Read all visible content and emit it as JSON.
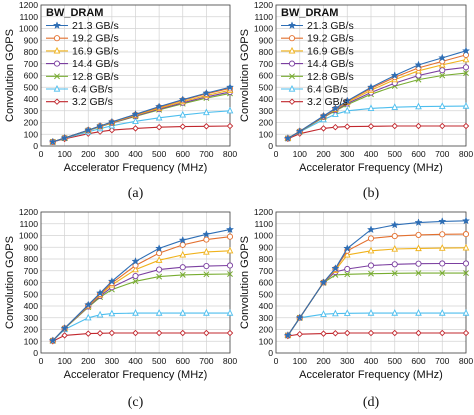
{
  "figure": {
    "legend_title": "BW_DRAM",
    "xlabel": "Accelerator Frequency (MHz)",
    "ylabel": "Convolution GOPS"
  },
  "series_styles": [
    {
      "name": "21.3 GB/s",
      "color": "#2e6eb5",
      "marker": "star"
    },
    {
      "name": "19.2 GB/s",
      "color": "#e3702f",
      "marker": "circle"
    },
    {
      "name": "16.9 GB/s",
      "color": "#f0b21b",
      "marker": "triangle"
    },
    {
      "name": "14.4 GB/s",
      "color": "#7b3fa0",
      "marker": "circle"
    },
    {
      "name": "12.8 GB/s",
      "color": "#77ac30",
      "marker": "cross"
    },
    {
      "name": "6.4 GB/s",
      "color": "#4dbeee",
      "marker": "triangle"
    },
    {
      "name": "3.2 GB/s",
      "color": "#c1272d",
      "marker": "diamond"
    }
  ],
  "chart_data": [
    {
      "type": "line",
      "caption": "(a)",
      "legend": "top-left",
      "grid": true,
      "x": [
        50,
        100,
        200,
        250,
        300,
        400,
        500,
        600,
        700,
        800
      ],
      "xlim": [
        0,
        800
      ],
      "ylim": [
        0,
        1200
      ],
      "xticks": [
        0,
        100,
        200,
        300,
        400,
        500,
        600,
        700,
        800
      ],
      "yticks": [
        0,
        100,
        200,
        300,
        400,
        500,
        600,
        700,
        800,
        900,
        1000,
        1100,
        1200
      ],
      "xlabel": "Accelerator Frequency (MHz)",
      "ylabel": "Convolution GOPS",
      "series": [
        {
          "name": "21.3 GB/s",
          "values": [
            35,
            68,
            135,
            170,
            205,
            270,
            335,
            395,
            450,
            500
          ]
        },
        {
          "name": "19.2 GB/s",
          "values": [
            35,
            68,
            135,
            170,
            203,
            267,
            330,
            390,
            443,
            490
          ]
        },
        {
          "name": "16.9 GB/s",
          "values": [
            35,
            68,
            134,
            168,
            200,
            262,
            322,
            378,
            430,
            475
          ]
        },
        {
          "name": "14.4 GB/s",
          "values": [
            35,
            68,
            133,
            166,
            197,
            256,
            314,
            368,
            418,
            460
          ]
        },
        {
          "name": "12.8 GB/s",
          "values": [
            35,
            67,
            132,
            164,
            195,
            252,
            308,
            360,
            408,
            448
          ]
        },
        {
          "name": "6.4 GB/s",
          "values": [
            35,
            65,
            120,
            148,
            172,
            210,
            240,
            265,
            285,
            300
          ]
        },
        {
          "name": "3.2 GB/s",
          "values": [
            35,
            60,
            105,
            122,
            135,
            150,
            160,
            165,
            168,
            170
          ]
        }
      ]
    },
    {
      "type": "line",
      "caption": "(b)",
      "legend": "top-left",
      "grid": true,
      "x": [
        50,
        100,
        200,
        250,
        300,
        400,
        500,
        600,
        700,
        800
      ],
      "xlim": [
        0,
        800
      ],
      "ylim": [
        0,
        1200
      ],
      "xticks": [
        0,
        100,
        200,
        300,
        400,
        500,
        600,
        700,
        800
      ],
      "yticks": [
        0,
        100,
        200,
        300,
        400,
        500,
        600,
        700,
        800,
        900,
        1000,
        1100,
        1200
      ],
      "xlabel": "Accelerator Frequency (MHz)",
      "ylabel": "Convolution GOPS",
      "series": [
        {
          "name": "21.3 GB/s",
          "values": [
            65,
            125,
            255,
            320,
            385,
            500,
            600,
            690,
            750,
            810
          ]
        },
        {
          "name": "19.2 GB/s",
          "values": [
            65,
            125,
            253,
            317,
            380,
            490,
            585,
            665,
            720,
            775
          ]
        },
        {
          "name": "16.9 GB/s",
          "values": [
            65,
            124,
            250,
            312,
            372,
            475,
            565,
            640,
            690,
            735
          ]
        },
        {
          "name": "14.4 GB/s",
          "values": [
            65,
            123,
            247,
            306,
            362,
            455,
            535,
            600,
            645,
            670
          ]
        },
        {
          "name": "12.8 GB/s",
          "values": [
            65,
            122,
            243,
            300,
            352,
            440,
            510,
            565,
            600,
            620
          ]
        },
        {
          "name": "6.4 GB/s",
          "values": [
            65,
            120,
            225,
            270,
            300,
            320,
            330,
            335,
            338,
            340
          ]
        },
        {
          "name": "3.2 GB/s",
          "values": [
            62,
            105,
            150,
            160,
            165,
            168,
            170,
            170,
            170,
            170
          ]
        }
      ]
    },
    {
      "type": "line",
      "caption": "(c)",
      "legend": "none",
      "grid": true,
      "x": [
        50,
        100,
        200,
        250,
        300,
        400,
        500,
        600,
        700,
        800
      ],
      "xlim": [
        0,
        800
      ],
      "ylim": [
        0,
        1200
      ],
      "xticks": [
        0,
        100,
        200,
        300,
        400,
        500,
        600,
        700,
        800
      ],
      "yticks": [
        0,
        100,
        200,
        300,
        400,
        500,
        600,
        700,
        800,
        900,
        1000,
        1100,
        1200
      ],
      "xlabel": "Accelerator Frequency (MHz)",
      "ylabel": "Convolution GOPS",
      "series": [
        {
          "name": "21.3 GB/s",
          "values": [
            105,
            210,
            410,
            510,
            610,
            780,
            890,
            960,
            1010,
            1050
          ]
        },
        {
          "name": "19.2 GB/s",
          "values": [
            105,
            210,
            405,
            502,
            595,
            745,
            850,
            920,
            965,
            990
          ]
        },
        {
          "name": "16.9 GB/s",
          "values": [
            105,
            210,
            400,
            495,
            580,
            710,
            790,
            835,
            860,
            870
          ]
        },
        {
          "name": "14.4 GB/s",
          "values": [
            105,
            210,
            395,
            485,
            560,
            655,
            710,
            730,
            740,
            745
          ]
        },
        {
          "name": "12.8 GB/s",
          "values": [
            105,
            208,
            390,
            475,
            540,
            610,
            650,
            665,
            670,
            672
          ]
        },
        {
          "name": "6.4 GB/s",
          "values": [
            105,
            200,
            300,
            325,
            335,
            340,
            340,
            340,
            340,
            340
          ]
        },
        {
          "name": "3.2 GB/s",
          "values": [
            100,
            150,
            165,
            168,
            170,
            170,
            170,
            170,
            170,
            170
          ]
        }
      ]
    },
    {
      "type": "line",
      "caption": "(d)",
      "legend": "none",
      "grid": true,
      "x": [
        50,
        100,
        200,
        250,
        300,
        400,
        500,
        600,
        700,
        800
      ],
      "xlim": [
        0,
        800
      ],
      "ylim": [
        0,
        1200
      ],
      "xticks": [
        0,
        100,
        200,
        300,
        400,
        500,
        600,
        700,
        800
      ],
      "yticks": [
        0,
        100,
        200,
        300,
        400,
        500,
        600,
        700,
        800,
        900,
        1000,
        1100,
        1200
      ],
      "xlabel": "Accelerator Frequency (MHz)",
      "ylabel": "Convolution GOPS",
      "series": [
        {
          "name": "21.3 GB/s",
          "values": [
            150,
            300,
            600,
            720,
            890,
            1050,
            1090,
            1110,
            1120,
            1125
          ]
        },
        {
          "name": "19.2 GB/s",
          "values": [
            150,
            300,
            600,
            715,
            870,
            975,
            995,
            1005,
            1010,
            1012
          ]
        },
        {
          "name": "16.9 GB/s",
          "values": [
            150,
            300,
            600,
            705,
            835,
            870,
            885,
            890,
            893,
            895
          ]
        },
        {
          "name": "14.4 GB/s",
          "values": [
            150,
            300,
            600,
            690,
            715,
            745,
            755,
            760,
            762,
            762
          ]
        },
        {
          "name": "12.8 GB/s",
          "values": [
            150,
            300,
            598,
            665,
            670,
            675,
            678,
            680,
            680,
            680
          ]
        },
        {
          "name": "6.4 GB/s",
          "values": [
            150,
            300,
            330,
            335,
            338,
            340,
            340,
            340,
            340,
            340
          ]
        },
        {
          "name": "3.2 GB/s",
          "values": [
            145,
            160,
            165,
            168,
            170,
            170,
            170,
            170,
            170,
            170
          ]
        }
      ]
    }
  ]
}
